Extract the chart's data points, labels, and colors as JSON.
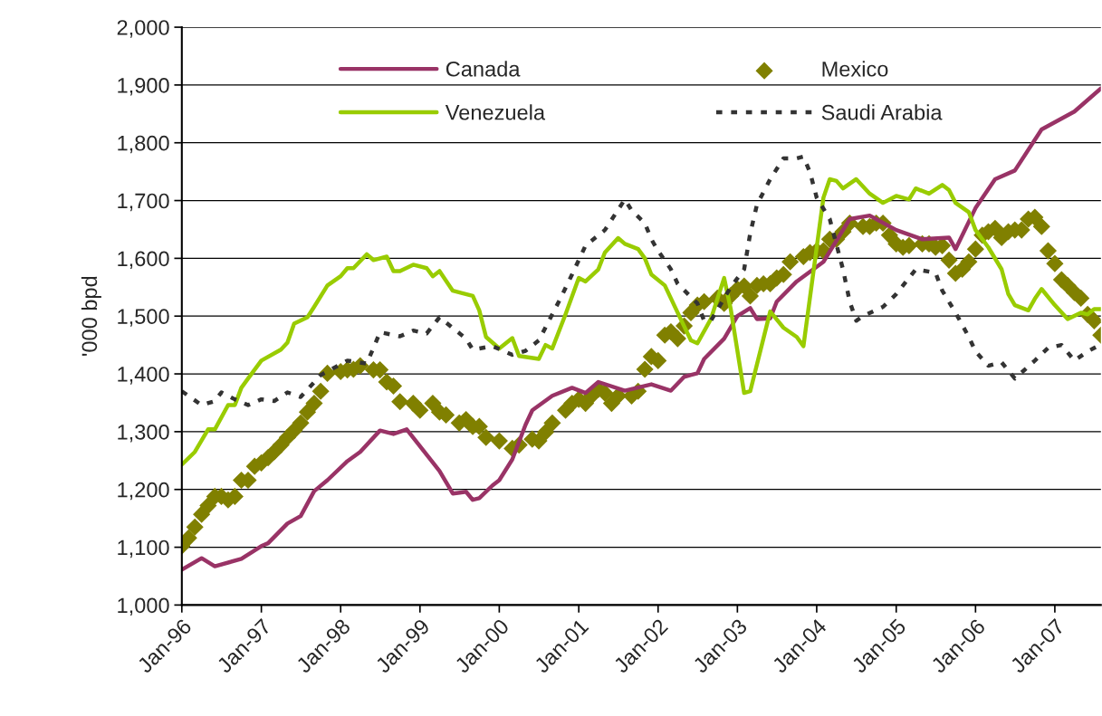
{
  "chart_data": {
    "type": "line",
    "ylabel": "'000 bpd",
    "xlim": [
      "1996-01",
      "2007-08"
    ],
    "xticks": [
      {
        "value": "1996-01",
        "label": "Jan-96"
      },
      {
        "value": "1997-01",
        "label": "Jan-97"
      },
      {
        "value": "1998-01",
        "label": "Jan-98"
      },
      {
        "value": "1999-01",
        "label": "Jan-99"
      },
      {
        "value": "2000-01",
        "label": "Jan-00"
      },
      {
        "value": "2001-01",
        "label": "Jan-01"
      },
      {
        "value": "2002-01",
        "label": "Jan-02"
      },
      {
        "value": "2003-01",
        "label": "Jan-03"
      },
      {
        "value": "2004-01",
        "label": "Jan-04"
      },
      {
        "value": "2005-01",
        "label": "Jan-05"
      },
      {
        "value": "2006-01",
        "label": "Jan-06"
      },
      {
        "value": "2007-01",
        "label": "Jan-07"
      }
    ],
    "ylim": [
      1000,
      2000
    ],
    "yticks": [
      {
        "value": 1000,
        "label": "1,000"
      },
      {
        "value": 1100,
        "label": "1,100"
      },
      {
        "value": 1200,
        "label": "1,200"
      },
      {
        "value": 1300,
        "label": "1,300"
      },
      {
        "value": 1400,
        "label": "1,400"
      },
      {
        "value": 1500,
        "label": "1,500"
      },
      {
        "value": 1600,
        "label": "1,600"
      },
      {
        "value": 1700,
        "label": "1,700"
      },
      {
        "value": 1800,
        "label": "1,800"
      },
      {
        "value": 1900,
        "label": "1,900"
      },
      {
        "value": 2000,
        "label": "2,000"
      }
    ],
    "grid": "y",
    "legend": "top",
    "series": [
      {
        "name": "Canada",
        "color": "#993366",
        "line_style": "solid",
        "x": [
          "1996-01",
          "1996-04",
          "1996-06",
          "1996-10",
          "1997-01",
          "1997-02",
          "1997-05",
          "1997-07",
          "1997-09",
          "1997-11",
          "1998-02",
          "1998-04",
          "1998-07",
          "1998-09",
          "1998-11",
          "1999-04",
          "1999-06",
          "1999-08",
          "1999-09",
          "1999-10",
          "1999-12",
          "2000-01",
          "2000-03",
          "2000-05",
          "2000-06",
          "2000-09",
          "2000-12",
          "2001-02",
          "2001-04",
          "2001-08",
          "2001-12",
          "2002-03",
          "2002-05",
          "2002-07",
          "2002-08",
          "2002-11",
          "2003-01",
          "2003-03",
          "2003-04",
          "2003-06",
          "2003-07",
          "2003-10",
          "2004-02",
          "2004-06",
          "2004-09",
          "2005-01",
          "2005-05",
          "2005-09",
          "2005-10",
          "2006-01",
          "2006-04",
          "2006-07",
          "2006-11",
          "2007-04",
          "2007-08"
        ],
        "values": [
          1061,
          1081,
          1067,
          1080,
          1102,
          1107,
          1141,
          1154,
          1197,
          1216,
          1249,
          1265,
          1302,
          1296,
          1304,
          1232,
          1193,
          1196,
          1182,
          1185,
          1207,
          1216,
          1252,
          1312,
          1337,
          1362,
          1376,
          1367,
          1386,
          1371,
          1382,
          1371,
          1395,
          1401,
          1426,
          1461,
          1500,
          1514,
          1495,
          1496,
          1525,
          1560,
          1594,
          1668,
          1674,
          1649,
          1633,
          1636,
          1616,
          1687,
          1737,
          1752,
          1823,
          1854,
          1894
        ]
      },
      {
        "name": "Venezuela",
        "color": "#99cc00",
        "line_style": "solid",
        "x": [
          "1996-01",
          "1996-03",
          "1996-05",
          "1996-06",
          "1996-08",
          "1996-09",
          "1996-10",
          "1996-11",
          "1997-01",
          "1997-04",
          "1997-05",
          "1997-06",
          "1997-08",
          "1997-09",
          "1997-11",
          "1998-01",
          "1998-02",
          "1998-03",
          "1998-05",
          "1998-06",
          "1998-08",
          "1998-09",
          "1998-10",
          "1998-12",
          "1999-02",
          "1999-03",
          "1999-04",
          "1999-06",
          "1999-09",
          "1999-10",
          "1999-11",
          "2000-01",
          "2000-03",
          "2000-04",
          "2000-07",
          "2000-08",
          "2000-09",
          "2000-11",
          "2001-01",
          "2001-02",
          "2001-04",
          "2001-05",
          "2001-07",
          "2001-08",
          "2001-10",
          "2001-11",
          "2001-12",
          "2002-02",
          "2002-04",
          "2002-06",
          "2002-07",
          "2002-09",
          "2002-11",
          "2002-12",
          "2003-02",
          "2003-03",
          "2003-06",
          "2003-08",
          "2003-10",
          "2003-11",
          "2004-01",
          "2004-02",
          "2004-03",
          "2004-04",
          "2004-05",
          "2004-07",
          "2004-09",
          "2004-11",
          "2005-01",
          "2005-03",
          "2005-04",
          "2005-06",
          "2005-08",
          "2005-09",
          "2005-10",
          "2005-12",
          "2006-01",
          "2006-03",
          "2006-05",
          "2006-06",
          "2006-07",
          "2006-09",
          "2006-10",
          "2006-11",
          "2007-01",
          "2007-03",
          "2007-05",
          "2007-06",
          "2007-07",
          "2007-08"
        ],
        "values": [
          1243,
          1265,
          1304,
          1304,
          1346,
          1346,
          1376,
          1392,
          1423,
          1442,
          1454,
          1487,
          1498,
          1516,
          1553,
          1569,
          1583,
          1583,
          1607,
          1597,
          1603,
          1578,
          1578,
          1589,
          1583,
          1569,
          1578,
          1544,
          1535,
          1510,
          1464,
          1444,
          1462,
          1431,
          1426,
          1450,
          1444,
          1503,
          1566,
          1560,
          1581,
          1610,
          1635,
          1625,
          1616,
          1600,
          1572,
          1553,
          1506,
          1458,
          1453,
          1495,
          1566,
          1513,
          1367,
          1370,
          1508,
          1480,
          1464,
          1448,
          1619,
          1705,
          1737,
          1734,
          1721,
          1737,
          1712,
          1696,
          1708,
          1702,
          1721,
          1712,
          1727,
          1718,
          1696,
          1680,
          1649,
          1619,
          1581,
          1538,
          1519,
          1510,
          1530,
          1547,
          1519,
          1495,
          1506,
          1503,
          1512,
          1512
        ]
      },
      {
        "name": "Mexico",
        "type": "scatter",
        "color": "#808000",
        "marker": "diamond",
        "x": [
          "1996-01",
          "1996-02",
          "1996-03",
          "1996-04",
          "1996-05",
          "1996-06",
          "1996-07",
          "1996-08",
          "1996-09",
          "1996-10",
          "1996-11",
          "1996-12",
          "1997-01",
          "1997-02",
          "1997-03",
          "1997-04",
          "1997-05",
          "1997-06",
          "1997-07",
          "1997-08",
          "1997-09",
          "1997-10",
          "1997-11",
          "1998-01",
          "1998-02",
          "1998-03",
          "1998-04",
          "1998-06",
          "1998-07",
          "1998-08",
          "1998-09",
          "1998-10",
          "1998-12",
          "1999-01",
          "1999-03",
          "1999-04",
          "1999-05",
          "1999-07",
          "1999-08",
          "1999-09",
          "1999-10",
          "1999-11",
          "2000-01",
          "2000-03",
          "2000-04",
          "2000-06",
          "2000-07",
          "2000-08",
          "2000-09",
          "2000-11",
          "2000-12",
          "2001-01",
          "2001-02",
          "2001-03",
          "2001-04",
          "2001-05",
          "2001-06",
          "2001-07",
          "2001-09",
          "2001-10",
          "2001-11",
          "2001-12",
          "2002-01",
          "2002-02",
          "2002-03",
          "2002-04",
          "2002-05",
          "2002-06",
          "2002-07",
          "2002-08",
          "2002-10",
          "2002-11",
          "2002-12",
          "2003-01",
          "2003-02",
          "2003-03",
          "2003-04",
          "2003-05",
          "2003-06",
          "2003-07",
          "2003-08",
          "2003-09",
          "2003-11",
          "2003-12",
          "2004-01",
          "2004-02",
          "2004-03",
          "2004-04",
          "2004-05",
          "2004-06",
          "2004-08",
          "2004-09",
          "2004-10",
          "2004-11",
          "2004-12",
          "2005-01",
          "2005-02",
          "2005-03",
          "2005-05",
          "2005-06",
          "2005-07",
          "2005-08",
          "2005-09",
          "2005-10",
          "2005-11",
          "2005-12",
          "2006-01",
          "2006-02",
          "2006-03",
          "2006-04",
          "2006-05",
          "2006-06",
          "2006-07",
          "2006-08",
          "2006-09",
          "2006-10",
          "2006-11",
          "2006-12",
          "2007-01",
          "2007-02",
          "2007-03",
          "2007-04",
          "2007-05",
          "2007-06",
          "2007-07",
          "2007-08"
        ],
        "values": [
          1102,
          1116,
          1135,
          1157,
          1172,
          1188,
          1188,
          1182,
          1188,
          1216,
          1216,
          1240,
          1246,
          1255,
          1265,
          1277,
          1290,
          1302,
          1315,
          1334,
          1349,
          1370,
          1401,
          1404,
          1407,
          1408,
          1414,
          1407,
          1407,
          1386,
          1379,
          1352,
          1349,
          1337,
          1349,
          1334,
          1329,
          1315,
          1321,
          1309,
          1309,
          1290,
          1284,
          1271,
          1277,
          1287,
          1284,
          1299,
          1315,
          1337,
          1349,
          1356,
          1349,
          1362,
          1373,
          1367,
          1349,
          1362,
          1362,
          1370,
          1408,
          1430,
          1423,
          1467,
          1473,
          1461,
          1483,
          1506,
          1519,
          1525,
          1531,
          1522,
          1535,
          1547,
          1552,
          1535,
          1553,
          1556,
          1556,
          1566,
          1572,
          1594,
          1603,
          1610,
          1613,
          1613,
          1633,
          1633,
          1646,
          1661,
          1655,
          1655,
          1661,
          1661,
          1640,
          1625,
          1619,
          1622,
          1625,
          1625,
          1619,
          1622,
          1597,
          1574,
          1581,
          1594,
          1616,
          1640,
          1646,
          1652,
          1636,
          1646,
          1649,
          1649,
          1668,
          1671,
          1655,
          1613,
          1591,
          1563,
          1553,
          1541,
          1531,
          1503,
          1492,
          1467
        ]
      },
      {
        "name": "Saudi Arabia",
        "color": "#333333",
        "line_style": "dotted",
        "x": [
          "1996-01",
          "1996-04",
          "1996-06",
          "1996-07",
          "1996-09",
          "1996-11",
          "1997-01",
          "1997-03",
          "1997-05",
          "1997-07",
          "1997-10",
          "1998-02",
          "1998-05",
          "1998-06",
          "1998-07",
          "1998-10",
          "1998-12",
          "1999-02",
          "1999-04",
          "1999-08",
          "1999-09",
          "1999-12",
          "2000-03",
          "2000-05",
          "2000-07",
          "2000-10",
          "2000-12",
          "2001-02",
          "2001-05",
          "2001-08",
          "2001-09",
          "2001-11",
          "2001-12",
          "2002-01",
          "2002-03",
          "2002-04",
          "2002-07",
          "2002-08",
          "2002-09",
          "2002-12",
          "2003-02",
          "2003-03",
          "2003-04",
          "2003-06",
          "2003-08",
          "2003-10",
          "2003-11",
          "2003-12",
          "2004-01",
          "2004-03",
          "2004-05",
          "2004-06",
          "2004-07",
          "2004-08",
          "2004-11",
          "2005-01",
          "2005-04",
          "2005-07",
          "2005-08",
          "2005-10",
          "2005-12",
          "2006-01",
          "2006-03",
          "2006-05",
          "2006-07",
          "2006-10",
          "2006-12",
          "2007-02",
          "2007-04",
          "2007-06",
          "2007-08"
        ],
        "values": [
          1370,
          1346,
          1353,
          1368,
          1356,
          1346,
          1356,
          1353,
          1368,
          1360,
          1398,
          1423,
          1418,
          1445,
          1472,
          1465,
          1475,
          1470,
          1498,
          1461,
          1442,
          1448,
          1433,
          1440,
          1458,
          1525,
          1572,
          1622,
          1649,
          1702,
          1683,
          1661,
          1633,
          1613,
          1581,
          1556,
          1522,
          1492,
          1492,
          1550,
          1581,
          1643,
          1693,
          1737,
          1773,
          1773,
          1776,
          1749,
          1705,
          1668,
          1581,
          1525,
          1492,
          1500,
          1516,
          1538,
          1581,
          1575,
          1544,
          1506,
          1464,
          1439,
          1414,
          1420,
          1392,
          1423,
          1445,
          1450,
          1423,
          1439,
          1451
        ]
      }
    ]
  }
}
